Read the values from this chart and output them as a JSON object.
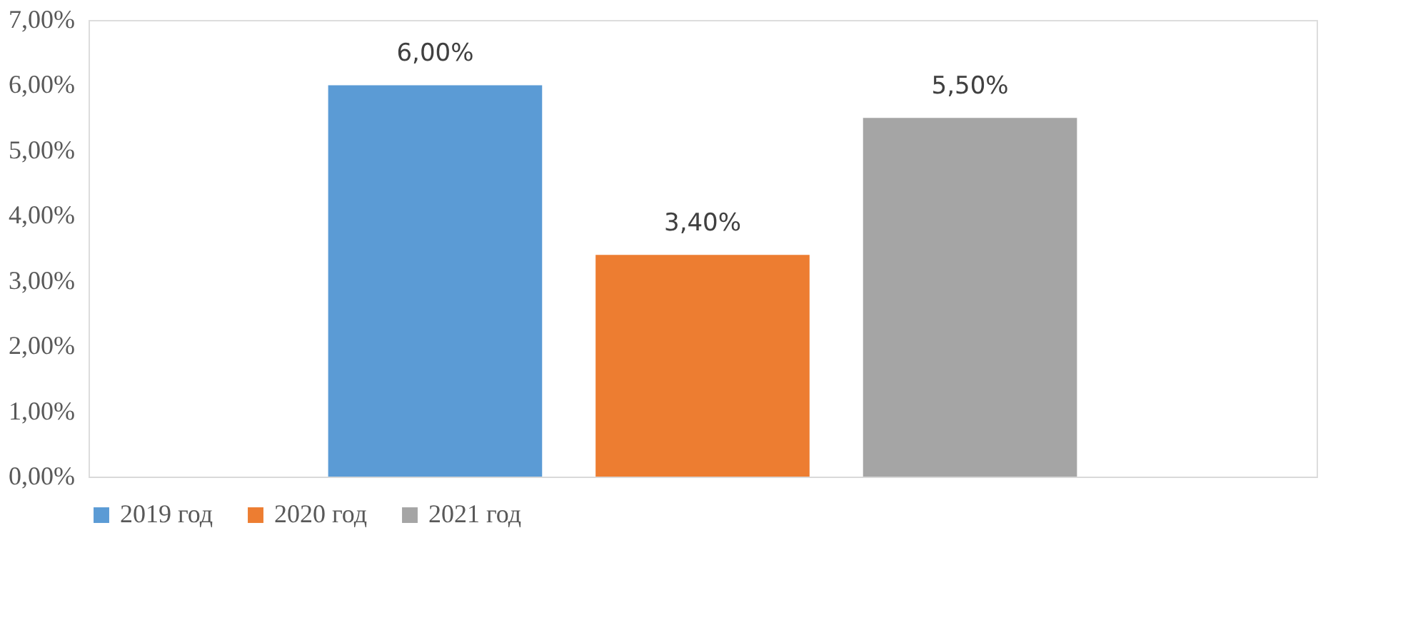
{
  "chart_data": {
    "type": "bar",
    "categories": [
      null
    ],
    "series": [
      {
        "name": "2019 год",
        "color": "#5b9bd5",
        "values": [
          6.0
        ],
        "value_labels": [
          "6,00%"
        ]
      },
      {
        "name": "2020 год",
        "color": "#ed7d31",
        "values": [
          3.4
        ],
        "value_labels": [
          "3,40%"
        ]
      },
      {
        "name": "2021 год",
        "color": "#a5a5a5",
        "values": [
          5.5
        ],
        "value_labels": [
          "5,50%"
        ]
      }
    ],
    "ylim": [
      0,
      7
    ],
    "yticks": [
      {
        "value": 0,
        "label": "0,00%"
      },
      {
        "value": 1,
        "label": "1,00%"
      },
      {
        "value": 2,
        "label": "2,00%"
      },
      {
        "value": 3,
        "label": "3,00%"
      },
      {
        "value": 4,
        "label": "4,00%"
      },
      {
        "value": 5,
        "label": "5,00%"
      },
      {
        "value": 6,
        "label": "6,00%"
      },
      {
        "value": 7,
        "label": "7,00%"
      }
    ],
    "tick_labels": "y",
    "legend": "bottom",
    "grid": false
  }
}
